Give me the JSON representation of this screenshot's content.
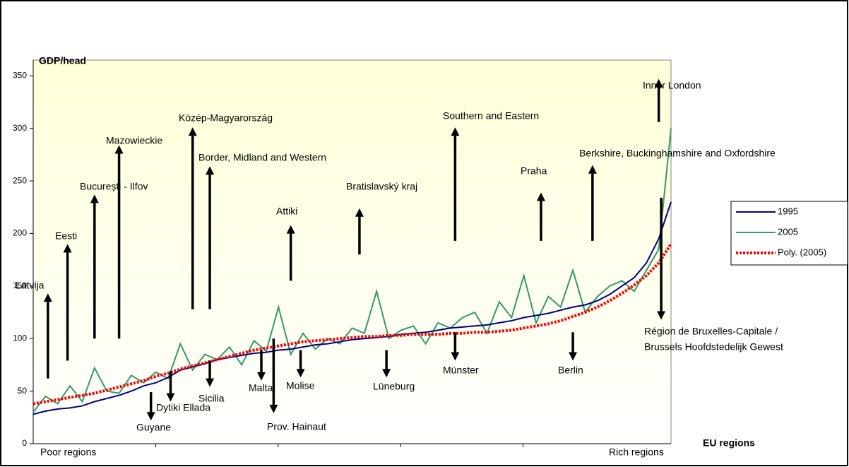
{
  "chart_data": {
    "type": "line",
    "y_axis_label": "GDP/head",
    "x_axis_label": "EU regions",
    "x_start_label": "Poor regions",
    "x_end_label": "Rich regions",
    "x": [
      0,
      5,
      10,
      15,
      20,
      25,
      30,
      35,
      40,
      45,
      50,
      55,
      60,
      65,
      70,
      75,
      80,
      85,
      90,
      95,
      100,
      105,
      110,
      115,
      120,
      125,
      130,
      135,
      140,
      145,
      150,
      155,
      160,
      165,
      170,
      175,
      180,
      185,
      190,
      195,
      200,
      205,
      210,
      215,
      220,
      225,
      230,
      235,
      240,
      245,
      250,
      255,
      260
    ],
    "xlim": [
      0,
      260
    ],
    "ylim": [
      0,
      365
    ],
    "yticks": [
      0,
      50,
      100,
      150,
      200,
      250,
      300,
      350
    ],
    "legend": "right",
    "series": [
      {
        "name": "1995",
        "color": "#000080",
        "values": [
          28,
          31,
          33,
          34,
          36,
          40,
          43,
          46,
          50,
          55,
          58,
          63,
          70,
          73,
          76,
          80,
          82,
          84,
          86,
          87,
          89,
          90,
          92,
          94,
          95,
          97,
          99,
          100,
          101,
          102,
          104,
          105,
          106,
          108,
          110,
          111,
          112,
          113,
          115,
          117,
          120,
          122,
          124,
          127,
          130,
          132,
          136,
          142,
          150,
          158,
          172,
          195,
          230
        ]
      },
      {
        "name": "2005",
        "color": "#339966",
        "values": [
          30,
          45,
          38,
          55,
          40,
          72,
          50,
          48,
          65,
          58,
          68,
          62,
          95,
          70,
          85,
          80,
          92,
          75,
          98,
          88,
          130,
          85,
          105,
          90,
          100,
          95,
          110,
          105,
          145,
          100,
          108,
          112,
          95,
          115,
          110,
          120,
          125,
          105,
          135,
          120,
          160,
          115,
          140,
          130,
          165,
          125,
          140,
          150,
          155,
          145,
          165,
          185,
          300
        ]
      },
      {
        "name": "Poly. (2005)",
        "color": "#ff0000",
        "dashed": true,
        "values": [
          38,
          40,
          42,
          44,
          46,
          48,
          51,
          54,
          57,
          60,
          64,
          67,
          71,
          74,
          77,
          80,
          83,
          86,
          89,
          91,
          93,
          95,
          97,
          98,
          99,
          100,
          101,
          102,
          102,
          103,
          103,
          104,
          104,
          104,
          105,
          105,
          106,
          106,
          107,
          108,
          110,
          112,
          114,
          117,
          121,
          125,
          130,
          136,
          143,
          151,
          160,
          172,
          190
        ]
      }
    ],
    "annotations": [
      {
        "text": "Latvija",
        "x": 6,
        "from": 62,
        "to": 143
      },
      {
        "text": "Eesti",
        "x": 14,
        "from": 79,
        "to": 190
      },
      {
        "text": "București - Ilfov",
        "x": 25,
        "from": 100,
        "to": 237
      },
      {
        "text": "Mazowieckie",
        "x": 35,
        "from": 100,
        "to": 284
      },
      {
        "text": "Közép-Magyarország",
        "x": 65,
        "from": 128,
        "to": 301
      },
      {
        "text": "Border, Midland and Western",
        "x": 72,
        "from": 128,
        "to": 264
      },
      {
        "text": "Attiki",
        "x": 105,
        "from": 155,
        "to": 208
      },
      {
        "text": "Bratislavský kraj",
        "x": 133,
        "from": 180,
        "to": 224
      },
      {
        "text": "Southern and Eastern",
        "x": 172,
        "from": 193,
        "to": 301
      },
      {
        "text": "Praha",
        "x": 207,
        "from": 193,
        "to": 239
      },
      {
        "text": "Berkshire, Buckinghamshire and Oxfordshire",
        "x": 228,
        "from": 193,
        "to": 265
      },
      {
        "text": "Inner London",
        "x": 255,
        "from": 306,
        "to": 347
      },
      {
        "text": "Région de Bruxelles-Capitale /",
        "text2": "Brussels Hoofdstedelijk Gewest",
        "x": 256,
        "from": 234,
        "to": 118
      },
      {
        "text": "Münster",
        "x": 172,
        "from": 106,
        "to": 79
      },
      {
        "text": "Berlin",
        "x": 220,
        "from": 106,
        "to": 79
      },
      {
        "text": "Lüneburg",
        "x": 144,
        "from": 89,
        "to": 63
      },
      {
        "text": "Molise",
        "x": 109,
        "from": 89,
        "to": 63
      },
      {
        "text": "Malta",
        "x": 93,
        "from": 89,
        "to": 60
      },
      {
        "text": "Prov. Hainaut",
        "x": 98,
        "from": 100,
        "to": 29
      },
      {
        "text": "Sicilia",
        "x": 72,
        "from": 79,
        "to": 54
      },
      {
        "text": "Dytiki Ellada",
        "x": 56,
        "from": 69,
        "to": 40
      },
      {
        "text": "Guyane",
        "x": 48,
        "from": 49,
        "to": 22
      }
    ]
  }
}
